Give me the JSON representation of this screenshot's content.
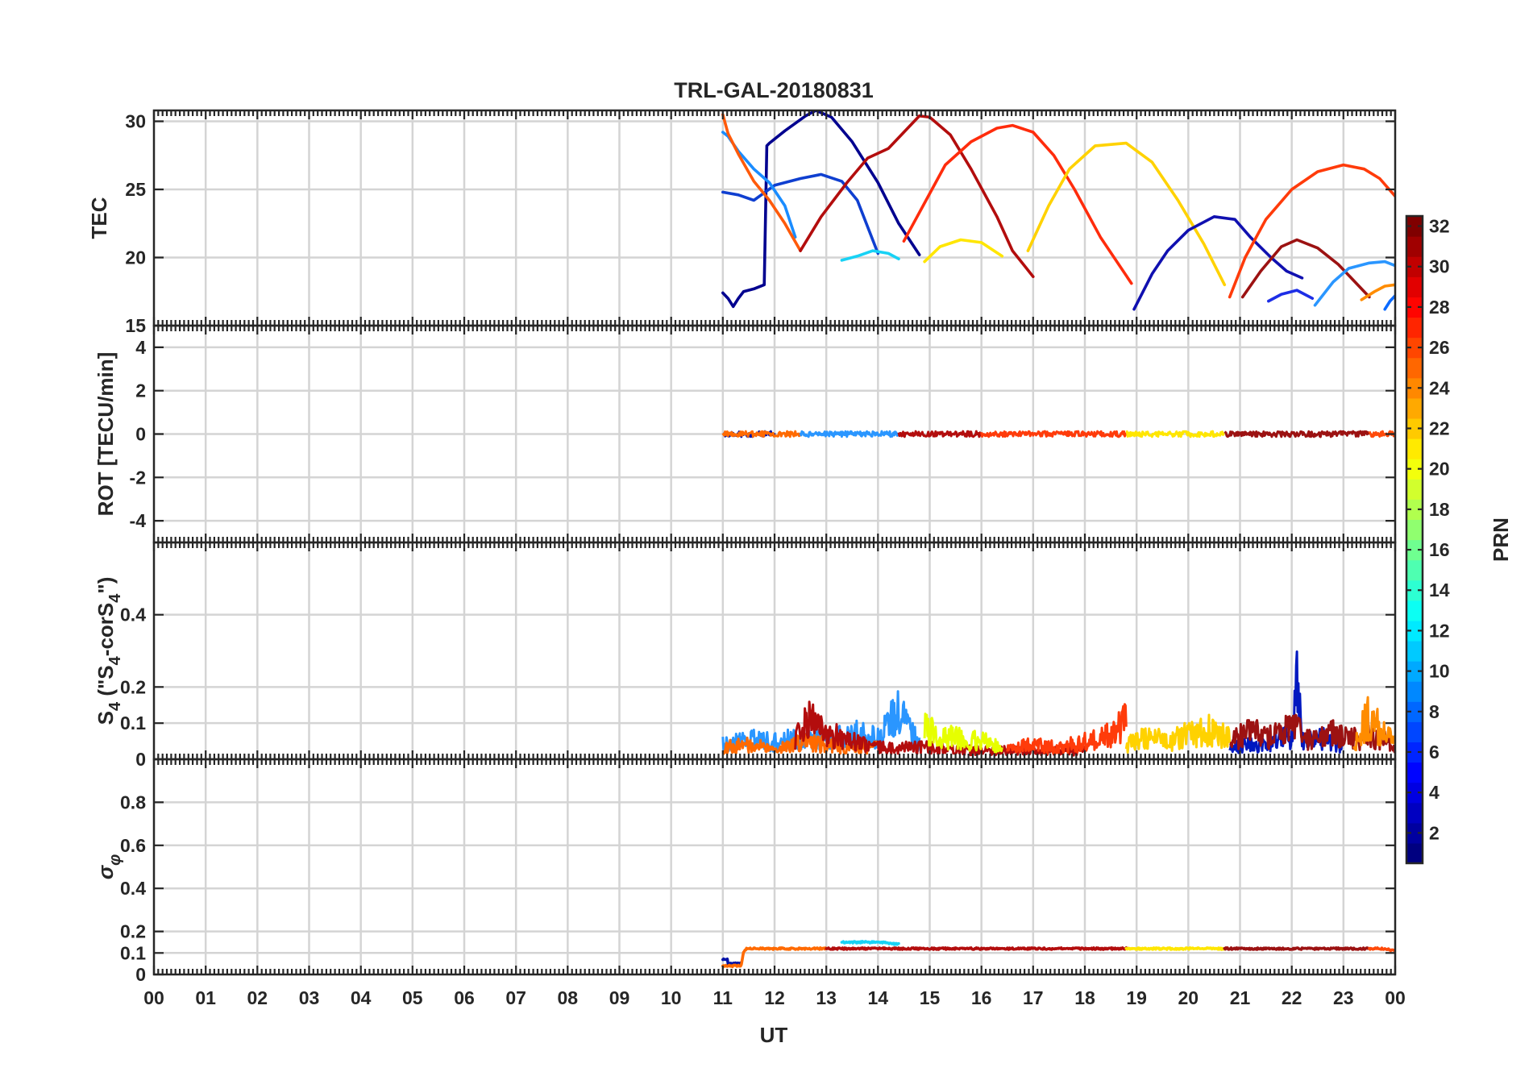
{
  "chart_data": {
    "type": "line",
    "title": "TRL-GAL-20180831",
    "xlabel": "UT",
    "xlim": [
      0,
      24
    ],
    "x_tick_labels": [
      "00",
      "01",
      "02",
      "03",
      "04",
      "05",
      "06",
      "07",
      "08",
      "09",
      "10",
      "11",
      "12",
      "13",
      "14",
      "15",
      "16",
      "17",
      "18",
      "19",
      "20",
      "21",
      "22",
      "23",
      "00"
    ],
    "colorbar": {
      "label": "PRN",
      "range": [
        1,
        32
      ],
      "tick_labels": [
        "2",
        "4",
        "6",
        "8",
        "10",
        "12",
        "14",
        "16",
        "18",
        "20",
        "22",
        "24",
        "26",
        "28",
        "30",
        "32"
      ],
      "colormap": "jet"
    },
    "panels": [
      {
        "id": "tec",
        "ylabel": "TEC",
        "ylim": [
          15,
          30.8
        ],
        "y_ticks": [
          15,
          20,
          25,
          30
        ],
        "series": [
          {
            "prn": 3,
            "color": "#00008f",
            "x": [
              11.0,
              11.1,
              11.2,
              11.3,
              11.4,
              11.6,
              11.8,
              11.85,
              11.9,
              12.2,
              12.6,
              12.8,
              13.1,
              13.5,
              14.0,
              14.4,
              14.8
            ],
            "y": [
              17.4,
              17.0,
              16.4,
              17.0,
              17.5,
              17.7,
              18.0,
              28.2,
              28.4,
              29.3,
              30.4,
              30.8,
              30.3,
              28.5,
              25.5,
              22.5,
              20.2
            ]
          },
          {
            "prn": 5,
            "color": "#0f3fd0",
            "x": [
              11.0,
              11.3,
              11.6,
              12.0,
              12.5,
              12.9,
              13.3,
              13.6,
              14.0
            ],
            "y": [
              24.8,
              24.6,
              24.2,
              25.3,
              25.8,
              26.1,
              25.6,
              24.2,
              20.3
            ]
          },
          {
            "prn": 8,
            "color": "#1a8cff",
            "x": [
              11.0,
              11.1,
              11.3,
              11.6,
              11.9,
              12.2,
              12.4
            ],
            "y": [
              29.2,
              28.9,
              27.8,
              26.5,
              25.5,
              23.8,
              21.5
            ]
          },
          {
            "prn": 24,
            "color": "#ff5a0a",
            "x": [
              11.0,
              11.1,
              11.3,
              11.6,
              11.9,
              12.2,
              12.5
            ],
            "y": [
              30.5,
              29.1,
              27.6,
              25.6,
              24.2,
              22.5,
              20.5
            ]
          },
          {
            "prn": 30,
            "color": "#b30d0d",
            "x": [
              12.5,
              12.9,
              13.4,
              13.8,
              14.2,
              14.8,
              15.0,
              15.4,
              15.8,
              16.3,
              16.6,
              17.0
            ],
            "y": [
              20.5,
              23.0,
              25.5,
              27.3,
              28.0,
              30.4,
              30.3,
              29.0,
              26.5,
              23.0,
              20.5,
              18.6
            ]
          },
          {
            "prn": 13,
            "color": "#18d2f5",
            "x": [
              13.3,
              13.6,
              13.9,
              14.2,
              14.4
            ],
            "y": [
              19.8,
              20.1,
              20.5,
              20.3,
              19.9
            ]
          },
          {
            "prn": 27,
            "color": "#ff2c0c",
            "x": [
              14.5,
              14.9,
              15.3,
              15.8,
              16.3,
              16.6,
              17.0,
              17.4,
              17.8,
              18.3,
              18.9
            ],
            "y": [
              21.2,
              24.0,
              26.8,
              28.5,
              29.5,
              29.7,
              29.2,
              27.5,
              25.0,
              21.5,
              18.1
            ]
          },
          {
            "prn": 20,
            "color": "#ffe600",
            "x": [
              14.9,
              15.2,
              15.6,
              16.0,
              16.4
            ],
            "y": [
              19.7,
              20.8,
              21.3,
              21.1,
              20.1
            ]
          },
          {
            "prn": 22,
            "color": "#ffd200",
            "x": [
              16.9,
              17.3,
              17.7,
              18.2,
              18.8,
              19.3,
              19.8,
              20.3,
              20.7
            ],
            "y": [
              20.5,
              23.8,
              26.5,
              28.2,
              28.4,
              27.0,
              24.2,
              21.0,
              18.0
            ]
          },
          {
            "prn": 2,
            "color": "#1010b0",
            "x": [
              18.95,
              19.3,
              19.6,
              20.0,
              20.5,
              20.9,
              21.2,
              21.6,
              21.9,
              22.2
            ],
            "y": [
              16.2,
              18.8,
              20.5,
              22.0,
              23.0,
              22.8,
              21.5,
              20.0,
              19.0,
              18.5
            ]
          },
          {
            "prn": 26,
            "color": "#ff3b0a",
            "x": [
              20.8,
              21.1,
              21.5,
              22.0,
              22.5,
              23.0,
              23.4,
              23.7,
              24.0
            ],
            "y": [
              17.1,
              20.0,
              22.8,
              25.0,
              26.3,
              26.8,
              26.5,
              25.8,
              24.5
            ]
          },
          {
            "prn": 31,
            "color": "#9c1212",
            "x": [
              21.05,
              21.4,
              21.8,
              22.1,
              22.5,
              22.9,
              23.2,
              23.5
            ],
            "y": [
              17.1,
              19.0,
              20.8,
              21.3,
              20.7,
              19.5,
              18.3,
              17.1
            ]
          },
          {
            "prn": 4,
            "color": "#1d2ee6",
            "x": [
              21.55,
              21.8,
              22.1,
              22.4
            ],
            "y": [
              16.8,
              17.3,
              17.6,
              17.0
            ]
          },
          {
            "prn": 9,
            "color": "#2a96ff",
            "x": [
              22.45,
              22.8,
              23.1,
              23.5,
              23.8,
              24.0
            ],
            "y": [
              16.5,
              18.2,
              19.2,
              19.6,
              19.7,
              19.4
            ]
          },
          {
            "prn": 23,
            "color": "#ff8c00",
            "x": [
              23.35,
              23.6,
              23.8,
              24.0
            ],
            "y": [
              16.9,
              17.5,
              17.9,
              18.0
            ]
          },
          {
            "prn": 7,
            "color": "#0a6aff",
            "x": [
              23.8,
              23.9,
              24.0
            ],
            "y": [
              16.2,
              16.8,
              17.2
            ]
          }
        ]
      },
      {
        "id": "rot",
        "ylabel": "ROT [TECU/min]",
        "ylim": [
          -5,
          5
        ],
        "y_ticks": [
          -4,
          -2,
          0,
          2,
          4
        ],
        "series": [
          {
            "prn": 3,
            "color": "#0012a8",
            "x": [
              11.0,
              12.0
            ],
            "y": [
              0,
              0
            ]
          },
          {
            "prn": 24,
            "color": "#ff6a00",
            "x": [
              11.0,
              12.5
            ],
            "y": [
              0,
              0
            ]
          },
          {
            "prn": 8,
            "color": "#2a96ff",
            "x": [
              12.5,
              14.4
            ],
            "y": [
              0,
              0
            ]
          },
          {
            "prn": 30,
            "color": "#b30d0d",
            "x": [
              14.4,
              16.0
            ],
            "y": [
              0,
              0
            ]
          },
          {
            "prn": 27,
            "color": "#ff3b0a",
            "x": [
              16.0,
              18.8
            ],
            "y": [
              0,
              0
            ]
          },
          {
            "prn": 20,
            "color": "#ffe600",
            "x": [
              18.8,
              20.7
            ],
            "y": [
              0,
              0
            ]
          },
          {
            "prn": 31,
            "color": "#9c1212",
            "x": [
              20.7,
              23.5
            ],
            "y": [
              0,
              0
            ]
          },
          {
            "prn": 26,
            "color": "#ff4a0a",
            "x": [
              23.5,
              24.0
            ],
            "y": [
              0,
              0
            ]
          }
        ]
      },
      {
        "id": "s4",
        "ylabel": "S4 (\"S4-corS4\")",
        "ylim": [
          0,
          0.6
        ],
        "y_ticks": [
          0,
          0.1,
          0.2,
          0.4
        ],
        "series": [
          {
            "prn": 8,
            "color": "#2a96ff",
            "x": [
              11.0,
              11.5,
              12.0,
              12.5,
              13.0,
              13.5,
              14.0,
              14.4,
              14.8
            ],
            "y": [
              0.05,
              0.07,
              0.06,
              0.08,
              0.06,
              0.09,
              0.07,
              0.16,
              0.05
            ]
          },
          {
            "prn": 24,
            "color": "#ff6a00",
            "x": [
              11.0,
              11.5,
              12.0,
              12.5,
              13.0,
              13.5,
              14.0
            ],
            "y": [
              0.04,
              0.05,
              0.04,
              0.06,
              0.05,
              0.04,
              0.04
            ]
          },
          {
            "prn": 30,
            "color": "#b30d0d",
            "x": [
              12.4,
              12.6,
              13.0,
              13.5,
              14.0,
              15.0,
              16.0,
              17.0,
              18.0
            ],
            "y": [
              0.06,
              0.14,
              0.09,
              0.06,
              0.04,
              0.04,
              0.03,
              0.03,
              0.03
            ]
          },
          {
            "prn": 20,
            "color": "#e6ff00",
            "x": [
              14.9,
              15.2,
              15.6,
              16.0,
              16.4
            ],
            "y": [
              0.12,
              0.08,
              0.07,
              0.06,
              0.05
            ]
          },
          {
            "prn": 27,
            "color": "#ff3b0a",
            "x": [
              16.5,
              17.0,
              17.5,
              18.0,
              18.5,
              18.8
            ],
            "y": [
              0.04,
              0.05,
              0.04,
              0.06,
              0.09,
              0.14
            ]
          },
          {
            "prn": 22,
            "color": "#ffd200",
            "x": [
              18.8,
              19.2,
              19.6,
              20.0,
              20.4,
              20.8
            ],
            "y": [
              0.05,
              0.08,
              0.06,
              0.09,
              0.1,
              0.07
            ]
          },
          {
            "prn": 2,
            "color": "#0018c0",
            "x": [
              20.8,
              21.2,
              21.6,
              22.0,
              22.1,
              22.2,
              22.6,
              23.0
            ],
            "y": [
              0.04,
              0.05,
              0.06,
              0.08,
              0.26,
              0.06,
              0.07,
              0.05
            ]
          },
          {
            "prn": 31,
            "color": "#9c1212",
            "x": [
              20.8,
              21.2,
              21.6,
              22.0,
              22.4,
              22.8,
              23.2,
              23.6,
              24.0
            ],
            "y": [
              0.06,
              0.1,
              0.08,
              0.11,
              0.06,
              0.09,
              0.07,
              0.08,
              0.05
            ]
          },
          {
            "prn": 23,
            "color": "#ff8c00",
            "x": [
              23.2,
              23.5,
              23.8,
              24.0
            ],
            "y": [
              0.05,
              0.15,
              0.08,
              0.06
            ]
          }
        ]
      },
      {
        "id": "sigma",
        "ylabel": "σφ",
        "ylim": [
          0,
          1
        ],
        "y_ticks": [
          0,
          0.1,
          0.2,
          0.4,
          0.6,
          0.8
        ],
        "series": [
          {
            "prn": 3,
            "color": "#0012a8",
            "x": [
              11.0,
              11.1,
              11.1,
              11.35
            ],
            "y": [
              0.07,
              0.07,
              0.05,
              0.05
            ]
          },
          {
            "prn": 24,
            "color": "#ff6a00",
            "x": [
              11.0,
              11.35,
              11.4,
              11.45,
              13.0
            ],
            "y": [
              0.04,
              0.04,
              0.1,
              0.12,
              0.12
            ]
          },
          {
            "prn": 13,
            "color": "#18d2f5",
            "x": [
              13.3,
              13.6,
              14.0,
              14.4
            ],
            "y": [
              0.15,
              0.15,
              0.15,
              0.14
            ]
          },
          {
            "prn": 30,
            "color": "#b30d0d",
            "x": [
              13.0,
              15.0,
              17.0,
              18.8
            ],
            "y": [
              0.12,
              0.12,
              0.12,
              0.12
            ]
          },
          {
            "prn": 20,
            "color": "#ffe600",
            "x": [
              18.8,
              19.7,
              20.7
            ],
            "y": [
              0.12,
              0.12,
              0.12
            ]
          },
          {
            "prn": 31,
            "color": "#9c1212",
            "x": [
              20.7,
              22.0,
              23.5
            ],
            "y": [
              0.12,
              0.12,
              0.12
            ]
          },
          {
            "prn": 26,
            "color": "#ff4a0a",
            "x": [
              23.5,
              23.8,
              24.0
            ],
            "y": [
              0.12,
              0.12,
              0.11
            ]
          }
        ]
      }
    ]
  }
}
